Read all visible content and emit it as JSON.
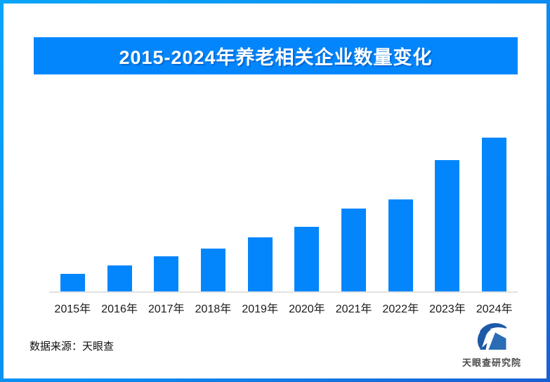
{
  "header": {
    "title": "2015-2024年养老相关企业数量变化",
    "banner_color": "#0386fc",
    "title_text_color": "#ffffff"
  },
  "chart_data": {
    "type": "bar",
    "title": "2015-2024年养老相关企业数量变化",
    "categories": [
      "2015年",
      "2016年",
      "2017年",
      "2018年",
      "2019年",
      "2020年",
      "2021年",
      "2022年",
      "2023年",
      "2024年"
    ],
    "values": [
      11.4,
      16.9,
      22.8,
      27.9,
      35.2,
      42.0,
      53.9,
      59.8,
      85.4,
      100
    ],
    "values_note": "no value axis, gridlines or data labels are shown in the image; values are relative bar heights with 2024 = 100",
    "xlabel": "",
    "ylabel": "",
    "grid": false,
    "legend": "none",
    "bar_color": "#0386fc",
    "axis_line_color": "#e2e2e2",
    "tick_label_color": "#1a1a1a"
  },
  "footer": {
    "source_label": "数据来源：天眼查",
    "logo_text": "天眼查研究院",
    "logo_color": "#1e59a8"
  },
  "colors": {
    "frame_gradient_start": "#08a5f9",
    "frame_gradient_end": "#1a5fd2",
    "background": "#ffffff"
  }
}
